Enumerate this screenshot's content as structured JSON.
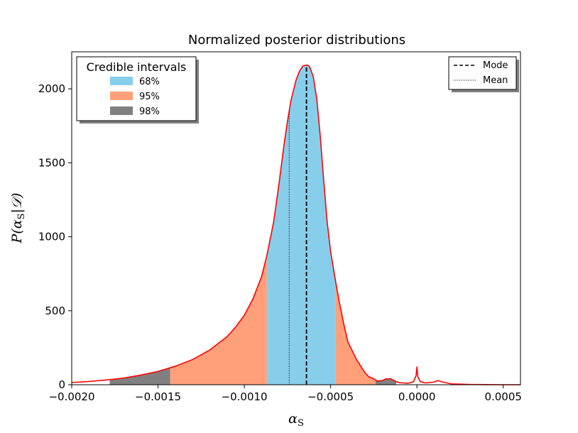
{
  "chart_data": {
    "type": "area",
    "title": "Normalized posterior distributions",
    "xlabel": "α_S",
    "ylabel": "P(α_S|𝒟)",
    "xlim": [
      -0.002,
      0.0006
    ],
    "ylim": [
      0,
      2250
    ],
    "x_ticks": [
      -0.002,
      -0.0015,
      -0.001,
      -0.0005,
      0.0,
      0.0005
    ],
    "x_tick_labels": [
      "−0.0020",
      "−0.0015",
      "−0.0010",
      "−0.0005",
      "0.0000",
      "0.0005"
    ],
    "y_ticks": [
      0,
      500,
      1000,
      1500,
      2000
    ],
    "y_tick_labels": [
      "0",
      "500",
      "1000",
      "1500",
      "2000"
    ],
    "series": [
      {
        "name": "posterior",
        "color": "#ff0000",
        "x": [
          -0.002,
          -0.0019,
          -0.0018,
          -0.0017,
          -0.0016,
          -0.0015,
          -0.0014,
          -0.0013,
          -0.0012,
          -0.0011,
          -0.00105,
          -0.001,
          -0.00095,
          -0.0009,
          -0.00087,
          -0.00083,
          -0.0008,
          -0.00077,
          -0.00075,
          -0.00073,
          -0.0007,
          -0.00068,
          -0.00066,
          -0.00064,
          -0.00063,
          -0.00062,
          -0.0006,
          -0.00058,
          -0.00056,
          -0.00054,
          -0.00052,
          -0.0005,
          -0.00047,
          -0.00045,
          -0.00042,
          -0.0004,
          -0.00035,
          -0.0003,
          -0.00028,
          -0.00025,
          -0.00023,
          -0.0002,
          -0.00018,
          -0.00015,
          -0.00012,
          -0.0001,
          -8e-05,
          -5e-05,
          -2e-05,
          -5e-06,
          0.0,
          5e-06,
          2e-05,
          5e-05,
          0.0001,
          0.00012,
          0.00015,
          0.0002,
          0.0003,
          0.0004,
          0.0005,
          0.0006
        ],
        "y": [
          15,
          22,
          32,
          45,
          65,
          90,
          125,
          170,
          235,
          325,
          390,
          470,
          580,
          730,
          870,
          1100,
          1350,
          1620,
          1780,
          1920,
          2060,
          2120,
          2155,
          2160,
          2158,
          2145,
          2080,
          1930,
          1680,
          1380,
          1100,
          900,
          690,
          560,
          390,
          290,
          170,
          80,
          55,
          40,
          25,
          28,
          40,
          40,
          20,
          14,
          12,
          10,
          20,
          60,
          120,
          55,
          20,
          12,
          18,
          28,
          18,
          6,
          2,
          1,
          0,
          0
        ]
      }
    ],
    "mode": -0.00064,
    "mean": -0.00074,
    "credible_intervals": [
      {
        "label": "68%",
        "color": "#87ceeb",
        "bounds": [
          [
            -0.00087,
            -0.00047
          ]
        ]
      },
      {
        "label": "95%",
        "color": "#ffa07a",
        "bounds": [
          [
            -0.00143,
            -0.00087
          ],
          [
            -0.00047,
            -0.00024
          ]
        ]
      },
      {
        "label": "98%",
        "color": "#808080",
        "bounds": [
          [
            -0.00178,
            -0.00143
          ],
          [
            -0.00024,
            -0.00012
          ]
        ]
      }
    ],
    "legend_left": {
      "title": "Credible intervals",
      "placement": "top-left",
      "entries": [
        {
          "label": "68%",
          "color": "#87ceeb"
        },
        {
          "label": "95%",
          "color": "#ffa07a"
        },
        {
          "label": "98%",
          "color": "#808080"
        }
      ]
    },
    "legend_right": {
      "placement": "top-right",
      "entries": [
        {
          "label": "Mode",
          "style": "dashed"
        },
        {
          "label": "Mean",
          "style": "dotted"
        }
      ]
    }
  }
}
